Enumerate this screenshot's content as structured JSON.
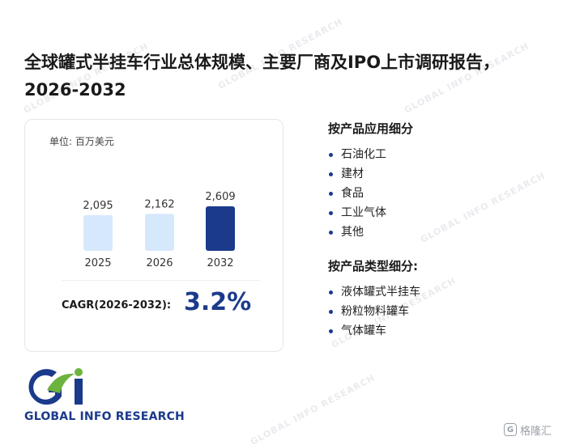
{
  "title": "全球罐式半挂车行业总体规模、主要厂商及IPO上市调研报告，2026-2032",
  "card": {
    "unit_label": "单位: 百万美元",
    "cagr_label": "CAGR(2026-2032):",
    "cagr_value": "3.2%"
  },
  "chart_data": {
    "type": "bar",
    "categories": [
      "2025",
      "2026",
      "2032"
    ],
    "values": [
      2095,
      2162,
      2609
    ],
    "value_labels": [
      "2,095",
      "2,162",
      "2,609"
    ],
    "bar_colors": [
      "#d6e8fb",
      "#d6e8fb",
      "#1b3a8c"
    ],
    "ylim": [
      0,
      2609
    ],
    "title": "",
    "xlabel": "",
    "ylabel": ""
  },
  "sections": [
    {
      "heading": "按产品应用细分",
      "items": [
        "石油化工",
        "建材",
        "食品",
        "工业气体",
        "其他"
      ]
    },
    {
      "heading": "按产品类型细分:",
      "items": [
        "液体罐式半挂车",
        "粉粒物料罐车",
        "气体罐车"
      ]
    }
  ],
  "logo": {
    "text": "GLOBAL INFO RESEARCH",
    "colors": {
      "blue": "#1b3a8c",
      "green": "#6db33f"
    }
  },
  "brand": {
    "text": "格隆汇",
    "mark": "G"
  },
  "watermark": {
    "text": "GLOBAL INFO RESEARCH",
    "color": "#e9ebee"
  }
}
